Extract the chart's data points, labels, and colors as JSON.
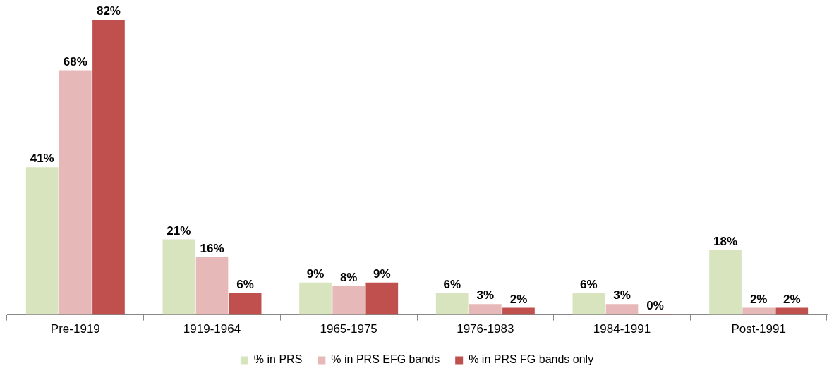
{
  "chart_data": {
    "type": "bar",
    "categories": [
      "Pre-1919",
      "1919-1964",
      "1965-1975",
      "1976-1983",
      "1984-1991",
      "Post-1991"
    ],
    "series": [
      {
        "name": "% in PRS",
        "color": "#d7e4bd",
        "values": [
          41,
          21,
          9,
          6,
          6,
          18
        ],
        "value_labels": [
          "41%",
          "21%",
          "9%",
          "6%",
          "6%",
          "18%"
        ]
      },
      {
        "name": "% in PRS EFG bands",
        "color": "#e6b9b8",
        "values": [
          68,
          16,
          8,
          3,
          3,
          2
        ],
        "value_labels": [
          "68%",
          "16%",
          "8%",
          "3%",
          "3%",
          "2%"
        ]
      },
      {
        "name": "% in PRS FG bands only",
        "color": "#c0504d",
        "values": [
          82,
          6,
          9,
          2,
          0,
          2
        ],
        "value_labels": [
          "82%",
          "6%",
          "9%",
          "2%",
          "0%",
          "2%"
        ]
      }
    ],
    "legend": "bottom",
    "tick_labels": "x",
    "grid": false
  }
}
